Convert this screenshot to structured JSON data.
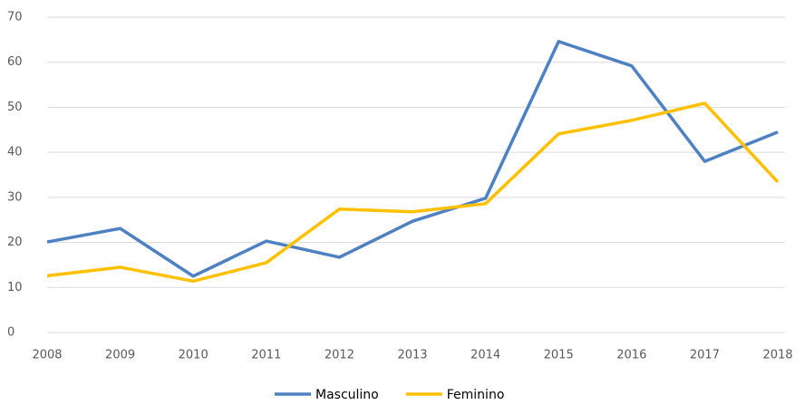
{
  "chart_data": {
    "type": "line",
    "x": [
      2008,
      2009,
      2010,
      2011,
      2012,
      2013,
      2014,
      2015,
      2016,
      2017,
      2018
    ],
    "series": [
      {
        "name": "Masculino",
        "color": "#4e81c4",
        "values": [
          20.1,
          23.1,
          12.5,
          20.3,
          16.7,
          24.7,
          29.8,
          64.6,
          59.2,
          38.0,
          44.5
        ]
      },
      {
        "name": "Feminino",
        "color": "#ffc000",
        "values": [
          12.6,
          14.5,
          11.4,
          15.5,
          27.4,
          26.8,
          28.6,
          44.1,
          47.1,
          50.9,
          33.4
        ]
      }
    ],
    "xlim": [
      2008,
      2018
    ],
    "xticks": [
      2008,
      2009,
      2010,
      2011,
      2012,
      2013,
      2014,
      2015,
      2016,
      2017,
      2018
    ],
    "ylim": [
      0,
      70
    ],
    "yticks": [
      0,
      10,
      20,
      30,
      40,
      50,
      60,
      70
    ],
    "grid": true,
    "legend": "bottom"
  }
}
